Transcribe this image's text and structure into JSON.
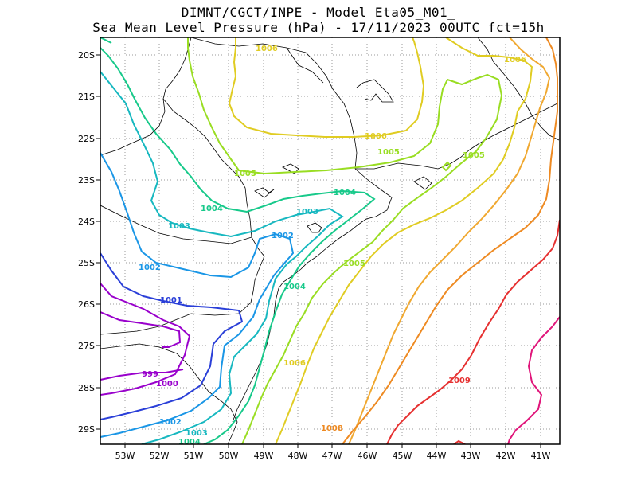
{
  "title_line1": "DIMNT/CGCT/INPE -  Model Eta05_M01_",
  "title_line2": "Sea Mean Level Pressure (hPa) - 17/11/2023 00UTC fct=15h",
  "x_ticks": [
    "53W",
    "52W",
    "51W",
    "50W",
    "49W",
    "48W",
    "47W",
    "46W",
    "45W",
    "44W",
    "43W",
    "42W",
    "41W"
  ],
  "y_ticks": [
    "20S",
    "21S",
    "22S",
    "23S",
    "24S",
    "25S",
    "26S",
    "27S",
    "28S",
    "29S"
  ],
  "isobar_labels": [
    {
      "text": "999",
      "color": "#9900cc"
    },
    {
      "text": "1000",
      "color": "#9900cc"
    },
    {
      "text": "1001",
      "color": "#2a3fd8"
    },
    {
      "text": "1002",
      "color": "#1a96e6"
    },
    {
      "text": "1002",
      "color": "#1a96e6"
    },
    {
      "text": "1002",
      "color": "#1a96e6"
    },
    {
      "text": "1003",
      "color": "#17b8c0"
    },
    {
      "text": "1003",
      "color": "#17b8c0"
    },
    {
      "text": "1003",
      "color": "#17b8c0"
    },
    {
      "text": "1004",
      "color": "#17c98a"
    },
    {
      "text": "1004",
      "color": "#17c98a"
    },
    {
      "text": "1004",
      "color": "#17c98a"
    },
    {
      "text": "1004",
      "color": "#17c98a"
    },
    {
      "text": "1005",
      "color": "#99dd22"
    },
    {
      "text": "1005",
      "color": "#99dd22"
    },
    {
      "text": "1005",
      "color": "#99dd22"
    },
    {
      "text": "1005",
      "color": "#99dd22"
    },
    {
      "text": "1006",
      "color": "#e0cc22"
    },
    {
      "text": "1006",
      "color": "#e0cc22"
    },
    {
      "text": "1006",
      "color": "#e0cc22"
    },
    {
      "text": "1006",
      "color": "#e0cc22"
    },
    {
      "text": "1008",
      "color": "#ee8a22"
    },
    {
      "text": "1009",
      "color": "#e63030"
    }
  ],
  "colors": {
    "c999": "#9900cc",
    "c1001": "#2a3fd8",
    "c1002": "#1a96e6",
    "c1003": "#17b8c0",
    "c1004": "#17c98a",
    "c1005": "#99dd22",
    "c1006": "#e0cc22",
    "c1007": "#f0a830",
    "c1008": "#ee8a22",
    "c1009": "#e63030",
    "c1010": "#e0157a",
    "border": "#000000",
    "grid": "#999999"
  }
}
